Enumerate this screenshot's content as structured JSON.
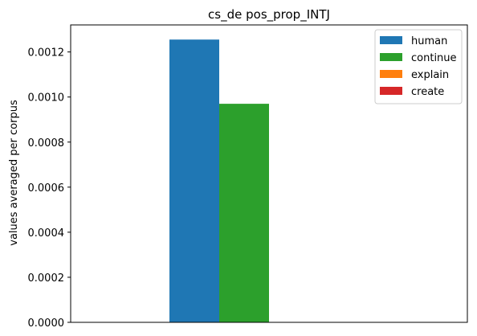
{
  "chart_data": {
    "type": "bar",
    "title": "cs_de pos_prop_INTJ",
    "xlabel": "",
    "ylabel": "values averaged per corpus",
    "ylim": [
      0,
      0.00132
    ],
    "yticks": [
      "0.0000",
      "0.0002",
      "0.0004",
      "0.0006",
      "0.0008",
      "0.0010",
      "0.0012"
    ],
    "ytick_values": [
      0,
      0.0002,
      0.0004,
      0.0006,
      0.0008,
      0.001,
      0.0012
    ],
    "categories": [
      ""
    ],
    "series": [
      {
        "name": "human",
        "values": [
          0.001255
        ],
        "color": "#1f77b4"
      },
      {
        "name": "continue",
        "values": [
          0.00097
        ],
        "color": "#2ca02c"
      },
      {
        "name": "explain",
        "values": [
          0
        ],
        "color": "#ff7f0e"
      },
      {
        "name": "create",
        "values": [
          0
        ],
        "color": "#d62728"
      }
    ],
    "legend_position": "top-right",
    "grid": false
  }
}
